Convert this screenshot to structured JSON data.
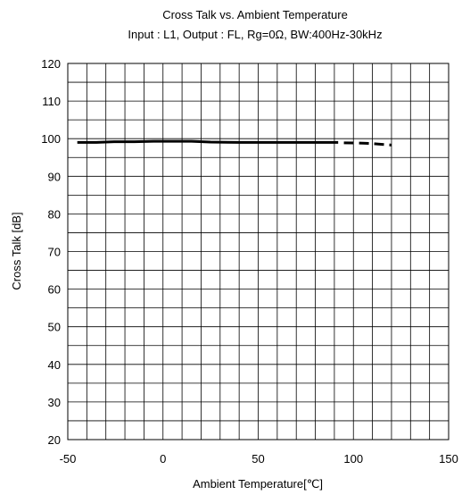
{
  "chart_data": {
    "type": "line",
    "title": "Cross Talk vs. Ambient Temperature",
    "subtitle": "Input : L1, Output : FL, Rg=0Ω, BW:400Hz-30kHz",
    "xlabel": "Ambient Temperature[℃]",
    "ylabel": "Cross Talk [dB]",
    "xlim": [
      -50,
      150
    ],
    "ylim": [
      20,
      120
    ],
    "x_ticks": [
      "-50",
      "0",
      "50",
      "100",
      "150"
    ],
    "y_ticks": [
      "20",
      "30",
      "40",
      "50",
      "60",
      "70",
      "80",
      "90",
      "100",
      "110",
      "120"
    ],
    "grid": true,
    "line_color": "#000000",
    "series": [
      {
        "style": "solid",
        "x": [
          -45,
          -35,
          -25,
          -15,
          -5,
          5,
          15,
          25,
          40,
          60,
          80,
          92
        ],
        "y": [
          99,
          99,
          99.2,
          99.2,
          99.3,
          99.3,
          99.3,
          99.1,
          99,
          99,
          99,
          99
        ]
      },
      {
        "style": "dashed",
        "x": [
          95,
          105,
          110,
          120
        ],
        "y": [
          98.9,
          98.8,
          98.7,
          98.3
        ]
      }
    ]
  }
}
